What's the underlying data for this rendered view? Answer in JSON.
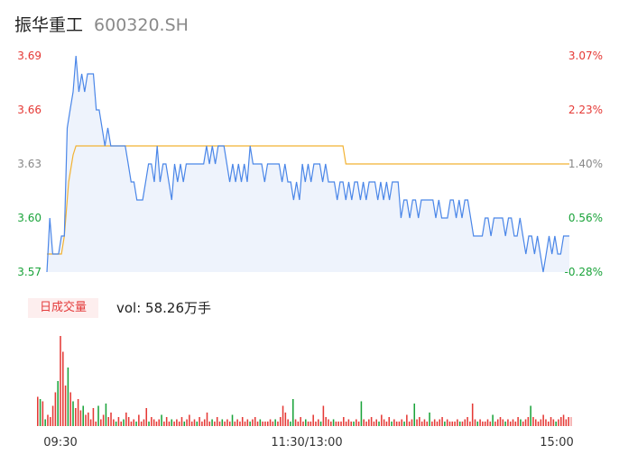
{
  "header": {
    "name": "振华重工",
    "code": "600320.SH"
  },
  "volume_panel": {
    "tag": "日成交量",
    "vol_label": "vol: 58.26万手"
  },
  "colors": {
    "price": "#4a86e8",
    "avg": "#f2b233",
    "up": "#e53935",
    "down": "#1aa33a",
    "neutral": "#888888"
  },
  "chart_data": {
    "type": "line",
    "price_ticks": [
      "3.69",
      "3.66",
      "3.63",
      "3.60",
      "3.57"
    ],
    "pct_ticks": [
      "3.07%",
      "2.23%",
      "1.40%",
      "0.56%",
      "-0.28%"
    ],
    "time_ticks": [
      "09:30",
      "11:30/13:00",
      "15:00"
    ],
    "ylim": [
      3.57,
      3.69
    ],
    "prev_close": 3.58,
    "minutes_total": 240,
    "price": [
      [
        0,
        3.57
      ],
      [
        2,
        3.6
      ],
      [
        4,
        3.58
      ],
      [
        6,
        3.58
      ],
      [
        8,
        3.58
      ],
      [
        10,
        3.59
      ],
      [
        12,
        3.59
      ],
      [
        13,
        3.62
      ],
      [
        14,
        3.65
      ],
      [
        16,
        3.66
      ],
      [
        18,
        3.67
      ],
      [
        20,
        3.69
      ],
      [
        22,
        3.67
      ],
      [
        24,
        3.68
      ],
      [
        26,
        3.67
      ],
      [
        28,
        3.68
      ],
      [
        30,
        3.68
      ],
      [
        32,
        3.68
      ],
      [
        34,
        3.66
      ],
      [
        36,
        3.66
      ],
      [
        38,
        3.65
      ],
      [
        40,
        3.64
      ],
      [
        42,
        3.65
      ],
      [
        44,
        3.64
      ],
      [
        46,
        3.64
      ],
      [
        48,
        3.64
      ],
      [
        50,
        3.64
      ],
      [
        52,
        3.64
      ],
      [
        54,
        3.64
      ],
      [
        56,
        3.63
      ],
      [
        58,
        3.62
      ],
      [
        60,
        3.62
      ],
      [
        62,
        3.61
      ],
      [
        64,
        3.61
      ],
      [
        66,
        3.61
      ],
      [
        68,
        3.62
      ],
      [
        70,
        3.63
      ],
      [
        72,
        3.63
      ],
      [
        74,
        3.62
      ],
      [
        76,
        3.64
      ],
      [
        78,
        3.62
      ],
      [
        80,
        3.63
      ],
      [
        82,
        3.63
      ],
      [
        84,
        3.62
      ],
      [
        86,
        3.61
      ],
      [
        88,
        3.63
      ],
      [
        90,
        3.62
      ],
      [
        92,
        3.63
      ],
      [
        94,
        3.62
      ],
      [
        96,
        3.63
      ],
      [
        98,
        3.63
      ],
      [
        100,
        3.63
      ],
      [
        102,
        3.63
      ],
      [
        104,
        3.63
      ],
      [
        106,
        3.63
      ],
      [
        108,
        3.63
      ],
      [
        110,
        3.64
      ],
      [
        112,
        3.63
      ],
      [
        114,
        3.64
      ],
      [
        116,
        3.63
      ],
      [
        118,
        3.64
      ],
      [
        120,
        3.64
      ],
      [
        122,
        3.64
      ],
      [
        124,
        3.63
      ],
      [
        126,
        3.62
      ],
      [
        128,
        3.63
      ],
      [
        130,
        3.62
      ],
      [
        132,
        3.63
      ],
      [
        134,
        3.62
      ],
      [
        136,
        3.63
      ],
      [
        138,
        3.62
      ],
      [
        140,
        3.64
      ],
      [
        142,
        3.63
      ],
      [
        144,
        3.63
      ],
      [
        146,
        3.63
      ],
      [
        148,
        3.63
      ],
      [
        150,
        3.62
      ],
      [
        152,
        3.63
      ],
      [
        154,
        3.63
      ],
      [
        156,
        3.63
      ],
      [
        158,
        3.63
      ],
      [
        160,
        3.63
      ],
      [
        162,
        3.62
      ],
      [
        164,
        3.63
      ],
      [
        166,
        3.62
      ],
      [
        168,
        3.62
      ],
      [
        170,
        3.61
      ],
      [
        172,
        3.62
      ],
      [
        174,
        3.61
      ],
      [
        176,
        3.63
      ],
      [
        178,
        3.62
      ],
      [
        180,
        3.63
      ],
      [
        182,
        3.62
      ],
      [
        184,
        3.63
      ],
      [
        186,
        3.63
      ],
      [
        188,
        3.63
      ],
      [
        190,
        3.62
      ],
      [
        192,
        3.63
      ],
      [
        194,
        3.62
      ],
      [
        196,
        3.62
      ],
      [
        198,
        3.62
      ],
      [
        200,
        3.61
      ],
      [
        202,
        3.62
      ],
      [
        204,
        3.62
      ],
      [
        206,
        3.61
      ],
      [
        208,
        3.62
      ],
      [
        210,
        3.61
      ],
      [
        212,
        3.62
      ],
      [
        214,
        3.62
      ],
      [
        216,
        3.61
      ],
      [
        218,
        3.62
      ],
      [
        220,
        3.61
      ],
      [
        222,
        3.62
      ],
      [
        224,
        3.62
      ],
      [
        226,
        3.62
      ],
      [
        228,
        3.61
      ],
      [
        230,
        3.62
      ],
      [
        232,
        3.61
      ],
      [
        234,
        3.62
      ],
      [
        236,
        3.61
      ],
      [
        238,
        3.62
      ],
      [
        240,
        3.62
      ],
      [
        242,
        3.62
      ],
      [
        244,
        3.6
      ],
      [
        246,
        3.61
      ],
      [
        248,
        3.61
      ],
      [
        250,
        3.6
      ],
      [
        252,
        3.61
      ],
      [
        254,
        3.61
      ],
      [
        256,
        3.6
      ],
      [
        258,
        3.61
      ],
      [
        260,
        3.61
      ],
      [
        262,
        3.61
      ],
      [
        264,
        3.61
      ],
      [
        266,
        3.61
      ],
      [
        268,
        3.6
      ],
      [
        270,
        3.61
      ],
      [
        272,
        3.6
      ],
      [
        274,
        3.6
      ],
      [
        276,
        3.6
      ],
      [
        278,
        3.61
      ],
      [
        280,
        3.61
      ],
      [
        282,
        3.6
      ],
      [
        284,
        3.61
      ],
      [
        286,
        3.6
      ],
      [
        288,
        3.61
      ],
      [
        290,
        3.61
      ],
      [
        292,
        3.6
      ],
      [
        294,
        3.59
      ],
      [
        296,
        3.59
      ],
      [
        298,
        3.59
      ],
      [
        300,
        3.59
      ],
      [
        302,
        3.6
      ],
      [
        304,
        3.6
      ],
      [
        306,
        3.59
      ],
      [
        308,
        3.6
      ],
      [
        310,
        3.6
      ],
      [
        312,
        3.6
      ],
      [
        314,
        3.6
      ],
      [
        316,
        3.59
      ],
      [
        318,
        3.6
      ],
      [
        320,
        3.6
      ],
      [
        322,
        3.59
      ],
      [
        324,
        3.59
      ],
      [
        326,
        3.6
      ],
      [
        328,
        3.59
      ],
      [
        330,
        3.58
      ],
      [
        332,
        3.59
      ],
      [
        334,
        3.59
      ],
      [
        336,
        3.58
      ],
      [
        338,
        3.59
      ],
      [
        340,
        3.58
      ],
      [
        342,
        3.57
      ],
      [
        344,
        3.58
      ],
      [
        346,
        3.59
      ],
      [
        348,
        3.58
      ],
      [
        350,
        3.59
      ],
      [
        352,
        3.58
      ],
      [
        354,
        3.58
      ],
      [
        356,
        3.59
      ],
      [
        358,
        3.59
      ],
      [
        360,
        3.59
      ]
    ],
    "avg": [
      [
        0,
        3.58
      ],
      [
        10,
        3.58
      ],
      [
        12,
        3.59
      ],
      [
        15,
        3.62
      ],
      [
        18,
        3.635
      ],
      [
        20,
        3.64
      ],
      [
        200,
        3.64
      ],
      [
        204,
        3.64
      ],
      [
        206,
        3.63
      ],
      [
        360,
        3.63
      ]
    ],
    "volume": [
      [
        13,
        "up"
      ],
      [
        12,
        "down"
      ],
      [
        11,
        "up"
      ],
      [
        3,
        "down"
      ],
      [
        5,
        "up"
      ],
      [
        4,
        "up"
      ],
      [
        9,
        "up"
      ],
      [
        15,
        "up"
      ],
      [
        20,
        "down"
      ],
      [
        40,
        "up"
      ],
      [
        33,
        "up"
      ],
      [
        18,
        "up"
      ],
      [
        26,
        "down"
      ],
      [
        15,
        "up"
      ],
      [
        11,
        "down"
      ],
      [
        8,
        "up"
      ],
      [
        12,
        "up"
      ],
      [
        7,
        "up"
      ],
      [
        9,
        "down"
      ],
      [
        5,
        "up"
      ],
      [
        6,
        "up"
      ],
      [
        3,
        "up"
      ],
      [
        8,
        "up"
      ],
      [
        2,
        "up"
      ],
      [
        9,
        "down"
      ],
      [
        3,
        "up"
      ],
      [
        5,
        "up"
      ],
      [
        10,
        "down"
      ],
      [
        4,
        "up"
      ],
      [
        6,
        "up"
      ],
      [
        3,
        "up"
      ],
      [
        2,
        "down"
      ],
      [
        4,
        "up"
      ],
      [
        2,
        "up"
      ],
      [
        3,
        "down"
      ],
      [
        6,
        "up"
      ],
      [
        4,
        "up"
      ],
      [
        2,
        "up"
      ],
      [
        3,
        "up"
      ],
      [
        2,
        "down"
      ],
      [
        5,
        "up"
      ],
      [
        2,
        "up"
      ],
      [
        3,
        "up"
      ],
      [
        8,
        "up"
      ],
      [
        2,
        "down"
      ],
      [
        4,
        "up"
      ],
      [
        3,
        "up"
      ],
      [
        2,
        "up"
      ],
      [
        3,
        "up"
      ],
      [
        5,
        "down"
      ],
      [
        2,
        "up"
      ],
      [
        4,
        "up"
      ],
      [
        2,
        "up"
      ],
      [
        3,
        "down"
      ],
      [
        2,
        "up"
      ],
      [
        3,
        "up"
      ],
      [
        2,
        "up"
      ],
      [
        4,
        "up"
      ],
      [
        2,
        "down"
      ],
      [
        3,
        "up"
      ],
      [
        5,
        "up"
      ],
      [
        2,
        "up"
      ],
      [
        3,
        "up"
      ],
      [
        2,
        "down"
      ],
      [
        4,
        "up"
      ],
      [
        2,
        "up"
      ],
      [
        3,
        "up"
      ],
      [
        6,
        "up"
      ],
      [
        2,
        "up"
      ],
      [
        3,
        "down"
      ],
      [
        2,
        "up"
      ],
      [
        4,
        "up"
      ],
      [
        2,
        "up"
      ],
      [
        3,
        "down"
      ],
      [
        2,
        "up"
      ],
      [
        3,
        "up"
      ],
      [
        2,
        "up"
      ],
      [
        5,
        "down"
      ],
      [
        2,
        "up"
      ],
      [
        3,
        "up"
      ],
      [
        2,
        "up"
      ],
      [
        4,
        "up"
      ],
      [
        2,
        "up"
      ],
      [
        3,
        "up"
      ],
      [
        2,
        "down"
      ],
      [
        3,
        "up"
      ],
      [
        4,
        "up"
      ],
      [
        2,
        "up"
      ],
      [
        3,
        "down"
      ],
      [
        2,
        "up"
      ],
      [
        2,
        "up"
      ],
      [
        2,
        "up"
      ],
      [
        3,
        "up"
      ],
      [
        2,
        "up"
      ],
      [
        3,
        "down"
      ],
      [
        2,
        "up"
      ],
      [
        4,
        "up"
      ],
      [
        9,
        "up"
      ],
      [
        6,
        "up"
      ],
      [
        3,
        "up"
      ],
      [
        2,
        "down"
      ],
      [
        12,
        "down"
      ],
      [
        3,
        "up"
      ],
      [
        2,
        "up"
      ],
      [
        4,
        "up"
      ],
      [
        2,
        "up"
      ],
      [
        3,
        "down"
      ],
      [
        2,
        "up"
      ],
      [
        2,
        "up"
      ],
      [
        5,
        "up"
      ],
      [
        2,
        "up"
      ],
      [
        3,
        "up"
      ],
      [
        2,
        "down"
      ],
      [
        9,
        "up"
      ],
      [
        4,
        "up"
      ],
      [
        3,
        "up"
      ],
      [
        2,
        "up"
      ],
      [
        3,
        "down"
      ],
      [
        2,
        "up"
      ],
      [
        2,
        "up"
      ],
      [
        2,
        "up"
      ],
      [
        4,
        "up"
      ],
      [
        2,
        "up"
      ],
      [
        3,
        "up"
      ],
      [
        2,
        "up"
      ],
      [
        2,
        "down"
      ],
      [
        3,
        "up"
      ],
      [
        2,
        "up"
      ],
      [
        11,
        "down"
      ],
      [
        3,
        "up"
      ],
      [
        2,
        "up"
      ],
      [
        3,
        "up"
      ],
      [
        4,
        "up"
      ],
      [
        2,
        "up"
      ],
      [
        3,
        "up"
      ],
      [
        2,
        "down"
      ],
      [
        5,
        "up"
      ],
      [
        3,
        "up"
      ],
      [
        2,
        "up"
      ],
      [
        4,
        "up"
      ],
      [
        2,
        "down"
      ],
      [
        3,
        "up"
      ],
      [
        2,
        "up"
      ],
      [
        2,
        "up"
      ],
      [
        3,
        "up"
      ],
      [
        2,
        "down"
      ],
      [
        5,
        "up"
      ],
      [
        2,
        "up"
      ],
      [
        3,
        "up"
      ],
      [
        10,
        "down"
      ],
      [
        3,
        "up"
      ],
      [
        4,
        "up"
      ],
      [
        2,
        "up"
      ],
      [
        3,
        "up"
      ],
      [
        2,
        "up"
      ],
      [
        6,
        "down"
      ],
      [
        2,
        "up"
      ],
      [
        3,
        "up"
      ],
      [
        2,
        "up"
      ],
      [
        3,
        "up"
      ],
      [
        4,
        "up"
      ],
      [
        2,
        "down"
      ],
      [
        3,
        "up"
      ],
      [
        2,
        "up"
      ],
      [
        2,
        "up"
      ],
      [
        2,
        "up"
      ],
      [
        3,
        "up"
      ],
      [
        2,
        "down"
      ],
      [
        2,
        "up"
      ],
      [
        3,
        "up"
      ],
      [
        4,
        "up"
      ],
      [
        2,
        "up"
      ],
      [
        10,
        "up"
      ],
      [
        3,
        "up"
      ],
      [
        2,
        "down"
      ],
      [
        3,
        "up"
      ],
      [
        2,
        "up"
      ],
      [
        2,
        "up"
      ],
      [
        3,
        "up"
      ],
      [
        2,
        "up"
      ],
      [
        5,
        "down"
      ],
      [
        2,
        "up"
      ],
      [
        3,
        "up"
      ],
      [
        4,
        "up"
      ],
      [
        3,
        "up"
      ],
      [
        2,
        "down"
      ],
      [
        3,
        "up"
      ],
      [
        2,
        "up"
      ],
      [
        3,
        "up"
      ],
      [
        2,
        "up"
      ],
      [
        4,
        "up"
      ],
      [
        3,
        "down"
      ],
      [
        2,
        "up"
      ],
      [
        3,
        "up"
      ],
      [
        4,
        "up"
      ],
      [
        9,
        "down"
      ],
      [
        4,
        "up"
      ],
      [
        3,
        "up"
      ],
      [
        2,
        "up"
      ],
      [
        3,
        "up"
      ],
      [
        5,
        "up"
      ],
      [
        3,
        "up"
      ],
      [
        2,
        "up"
      ],
      [
        4,
        "up"
      ],
      [
        3,
        "up"
      ],
      [
        2,
        "down"
      ],
      [
        3,
        "up"
      ],
      [
        4,
        "up"
      ],
      [
        5,
        "up"
      ],
      [
        3,
        "up"
      ],
      [
        4,
        "up"
      ],
      [
        4,
        "neutral"
      ]
    ]
  }
}
